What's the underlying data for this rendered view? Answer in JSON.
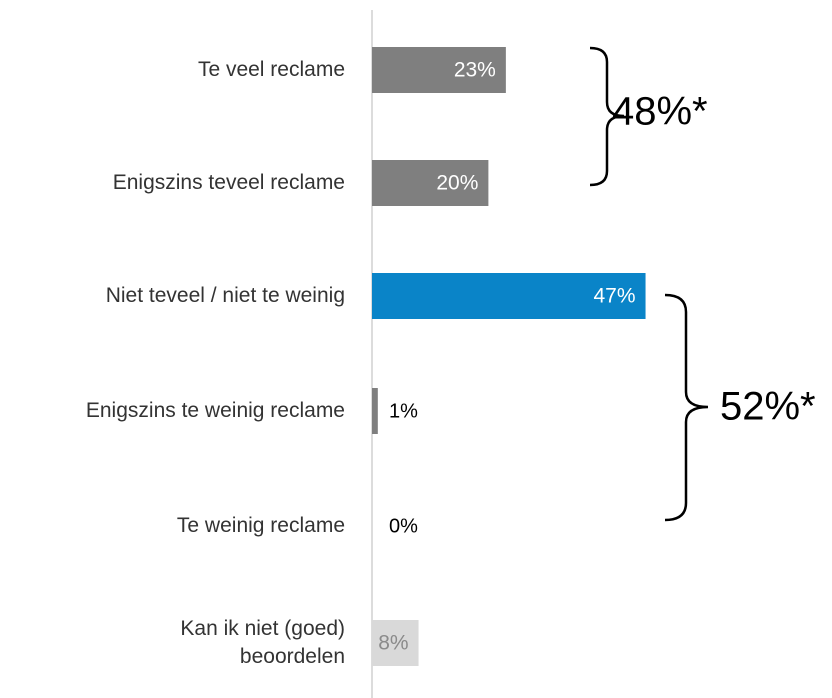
{
  "chart_data": {
    "type": "bar",
    "orientation": "horizontal",
    "categories": [
      "Te veel reclame",
      "Enigszins teveel reclame",
      "Niet teveel / niet te weinig",
      "Enigszins te weinig reclame",
      "Te weinig reclame",
      "Kan ik niet (goed)\nbeoordelen"
    ],
    "values": [
      23,
      20,
      47,
      1,
      0,
      8
    ],
    "value_labels": [
      "23%",
      "20%",
      "47%",
      "1%",
      "0%",
      "8%"
    ],
    "colors": [
      "#7f7f7f",
      "#7f7f7f",
      "#0a84c8",
      "#7f7f7f",
      "#7f7f7f",
      "#d9d9d9"
    ],
    "annotations": [
      {
        "text": "48%*"
      },
      {
        "text": "52%*"
      }
    ]
  }
}
